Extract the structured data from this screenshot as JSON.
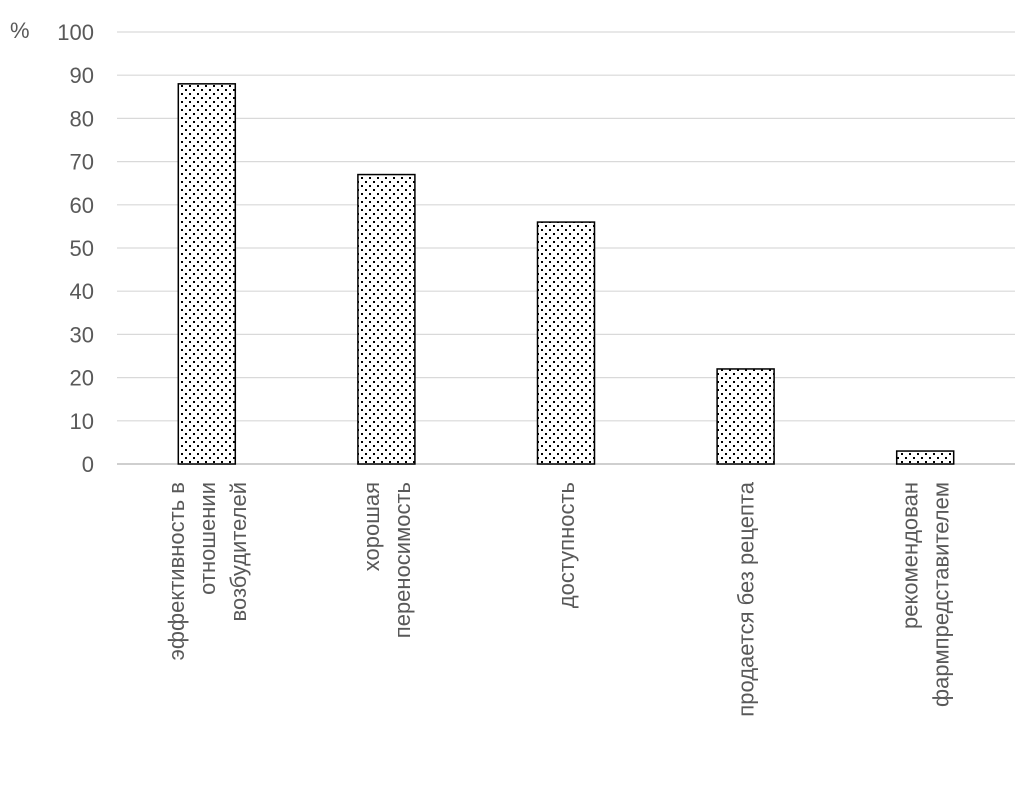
{
  "chart_data": {
    "type": "bar",
    "y_unit": "%",
    "categories": [
      [
        "эффективность в",
        "отношении",
        "возбудителей"
      ],
      [
        "хорошая",
        "переносимость"
      ],
      [
        "доступность"
      ],
      [
        "продается без рецепта"
      ],
      [
        "рекомендован",
        "фармпредставителем"
      ]
    ],
    "values": [
      88,
      67,
      56,
      22,
      3
    ],
    "ylim": [
      0,
      100
    ],
    "yticks": [
      0,
      10,
      20,
      30,
      40,
      50,
      60,
      70,
      80,
      90,
      100
    ],
    "grid": true,
    "legend": "none",
    "colors": {
      "bar_fill": "#ffffff",
      "bar_dots": "#000000",
      "bar_stroke": "#000000",
      "grid": "#d9d9d9",
      "axis": "#bfbfbf",
      "text": "#595959"
    },
    "pattern": "dotted"
  }
}
